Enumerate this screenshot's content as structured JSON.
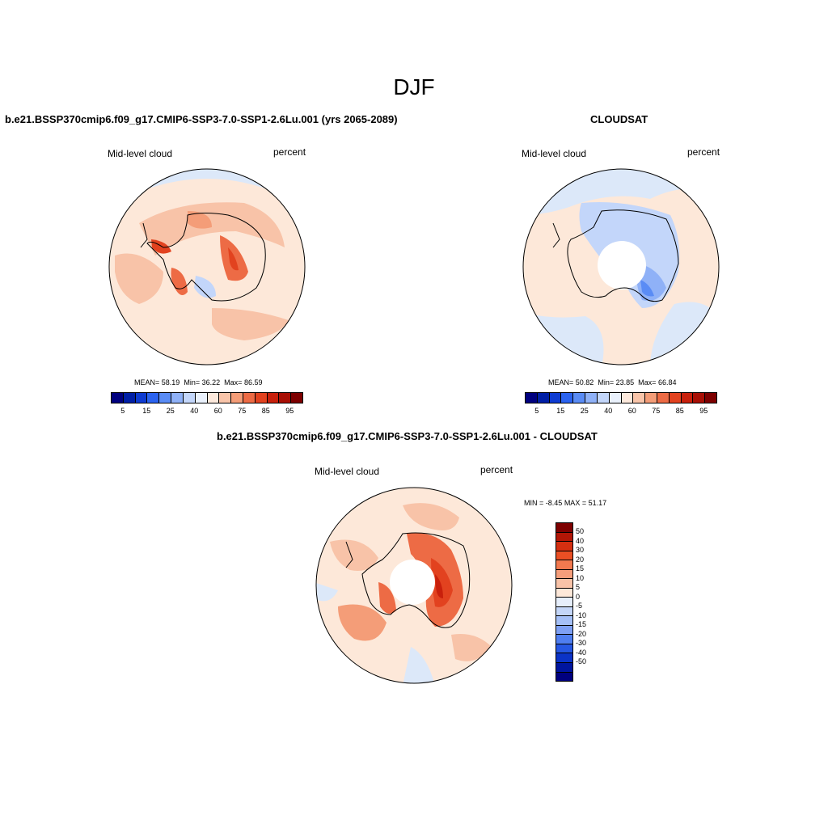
{
  "figure": {
    "season": "DJF"
  },
  "panels": {
    "model": {
      "title": "b.e21.BSSP370cmip6.f09_g17.CMIP6-SSP3-7.0-SSP1-2.6Lu.001 (yrs 2065-2089)",
      "variable": "Mid-level cloud",
      "units": "percent",
      "stats": {
        "mean_label": "MEAN=",
        "mean": "58.19",
        "min_label": "Min=",
        "min": "36.22",
        "max_label": "Max=",
        "max": "86.59"
      }
    },
    "obs": {
      "title": "CLOUDSAT",
      "variable": "Mid-level cloud",
      "units": "percent",
      "stats": {
        "mean_label": "MEAN=",
        "mean": "50.82",
        "min_label": "Min=",
        "min": "23.85",
        "max_label": "Max=",
        "max": "66.84"
      }
    },
    "diff": {
      "title": "b.e21.BSSP370cmip6.f09_g17.CMIP6-SSP3-7.0-SSP1-2.6Lu.001 - CLOUDSAT",
      "variable": "Mid-level cloud",
      "units": "percent",
      "stats": {
        "min_label": "MIN =",
        "min": "-8.45",
        "max_label": "MAX =",
        "max": "51.17"
      }
    }
  },
  "colorbar_abs": {
    "colors": [
      "#00007f",
      "#001fa6",
      "#0e3bd1",
      "#2b63f0",
      "#5a8cf5",
      "#8fb1f7",
      "#c3d6fa",
      "#eaf1fc",
      "#fde9dc",
      "#f9c5aa",
      "#f49d78",
      "#ed6b45",
      "#e2421f",
      "#c8200c",
      "#a80f05",
      "#7d0000"
    ],
    "tick_labels": [
      "5",
      "15",
      "25",
      "40",
      "60",
      "75",
      "85",
      "95"
    ]
  },
  "colorbar_diff": {
    "colors_top_to_bottom": [
      "#7d0000",
      "#b21606",
      "#d42f10",
      "#ea4f24",
      "#f2794f",
      "#f59e7b",
      "#f8c3a8",
      "#fde8d9",
      "#e6eefb",
      "#c4d6f8",
      "#a5c0f7",
      "#7ea0f4",
      "#4f7ef0",
      "#2657e3",
      "#0b33c7",
      "#00159e",
      "#00007f"
    ],
    "tick_labels_top_to_bottom": [
      "50",
      "40",
      "30",
      "20",
      "15",
      "10",
      "5",
      "0",
      "-5",
      "-10",
      "-15",
      "-20",
      "-30",
      "-40",
      "-50"
    ]
  },
  "colors": {
    "ocean_base_model": "#fde8d9",
    "ocean_base_obs": "#fde8d9",
    "ocean_base_diff": "#fde8d9",
    "pole_mask": "#ffffff",
    "coast": "#000000"
  }
}
